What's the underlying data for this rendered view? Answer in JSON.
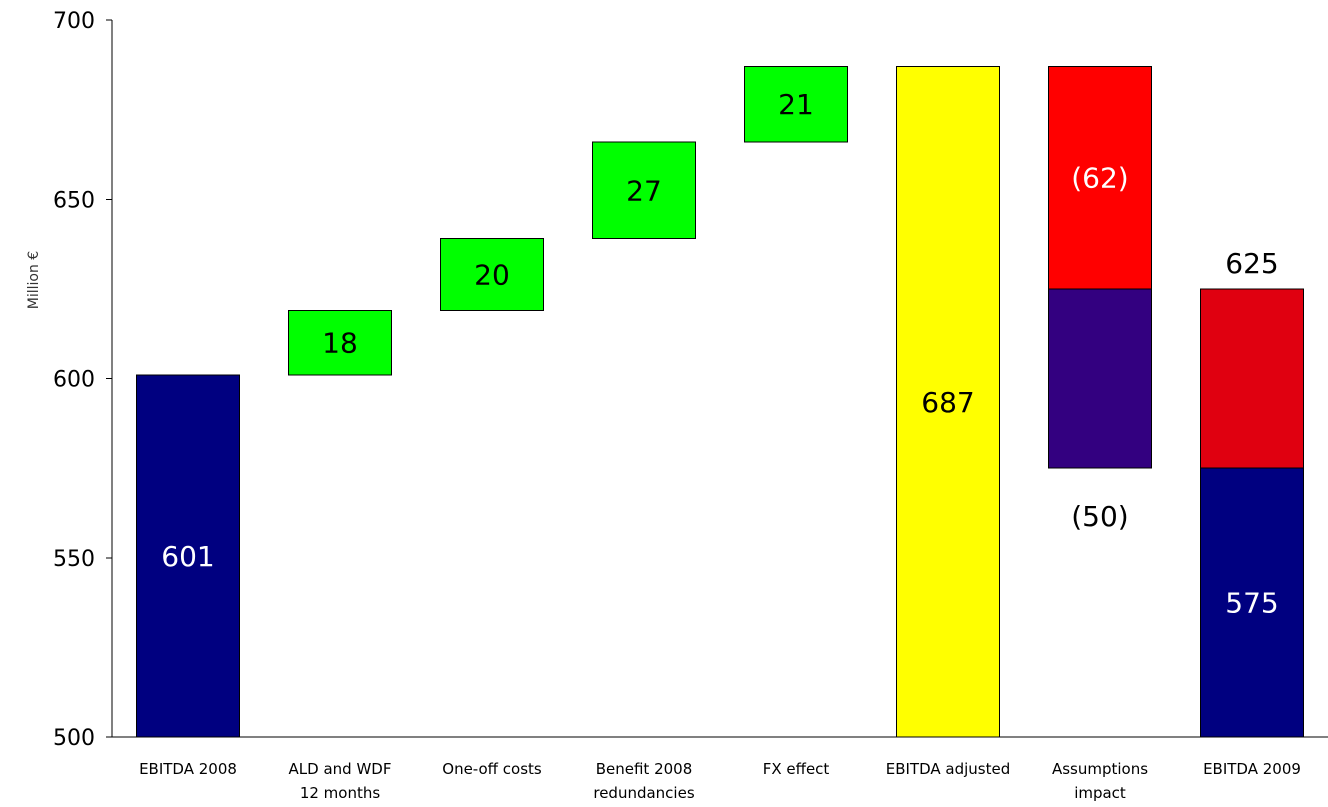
{
  "chart_data": {
    "type": "bar",
    "subtype": "waterfall",
    "title": "",
    "xlabel": "",
    "ylabel": "Million €",
    "ylim": [
      500,
      700
    ],
    "yticks": [
      500,
      550,
      600,
      650,
      700
    ],
    "grid": false,
    "legend": "none",
    "categories": [
      "EBITDA 2008",
      "ALD and WDF\n12 months",
      "One-off costs",
      "Benefit 2008\nredundancies",
      "FX effect",
      "EBITDA adjusted",
      "Assumptions\nimpact",
      "EBITDA 2009"
    ],
    "segments": [
      {
        "category": 0,
        "from": 500,
        "to": 601,
        "color": "#000080",
        "label": "601",
        "label_color": "#ffffff",
        "label_pos": "inside"
      },
      {
        "category": 1,
        "from": 601,
        "to": 619,
        "color": "#00ff00",
        "label": "18",
        "label_color": "#000000",
        "label_pos": "inside"
      },
      {
        "category": 2,
        "from": 619,
        "to": 639,
        "color": "#00ff00",
        "label": "20",
        "label_color": "#000000",
        "label_pos": "inside"
      },
      {
        "category": 3,
        "from": 639,
        "to": 666,
        "color": "#00ff00",
        "label": "27",
        "label_color": "#000000",
        "label_pos": "inside"
      },
      {
        "category": 4,
        "from": 666,
        "to": 687,
        "color": "#00ff00",
        "label": "21",
        "label_color": "#000000",
        "label_pos": "inside"
      },
      {
        "category": 5,
        "from": 500,
        "to": 687,
        "color": "#ffff00",
        "label": "687",
        "label_color": "#000000",
        "label_pos": "inside"
      },
      {
        "category": 6,
        "from": 625,
        "to": 687,
        "color": "#ff0000",
        "label": "(62)",
        "label_color": "#ffffff",
        "label_pos": "inside"
      },
      {
        "category": 6,
        "from": 575,
        "to": 625,
        "color": "#330080",
        "label": "(50)",
        "label_color": "#000000",
        "label_pos": "below"
      },
      {
        "category": 7,
        "from": 500,
        "to": 575,
        "color": "#000080",
        "label": "575",
        "label_color": "#ffffff",
        "label_pos": "inside"
      },
      {
        "category": 7,
        "from": 575,
        "to": 625,
        "color": "#e00010",
        "label": "625",
        "label_color": "#000000",
        "label_pos": "above"
      }
    ]
  }
}
